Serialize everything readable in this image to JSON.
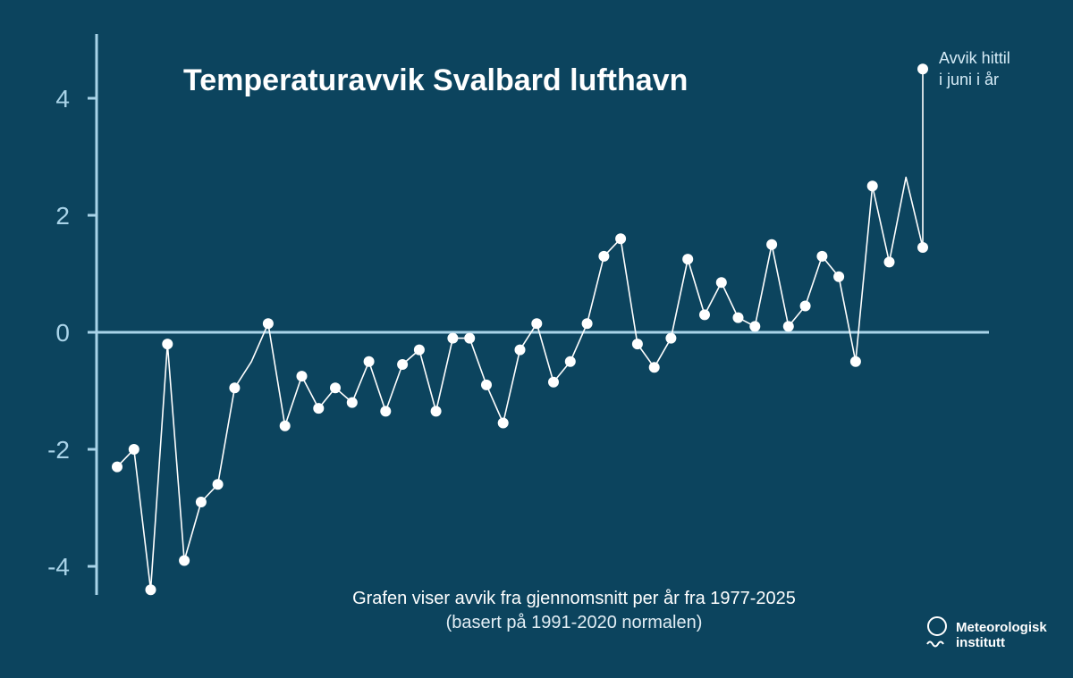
{
  "chart_data": {
    "type": "line",
    "title": "Temperaturavvik Svalbard lufthavn",
    "subtitle": "Grafen viser avvik fra gjennomsnitt per år fra 1977-2025",
    "subtitle_note": "(basert på 1991-2020 normalen)",
    "xlabel": "",
    "ylabel": "",
    "ylim": [
      -4.4,
      5.1
    ],
    "xlim": [
      1977,
      2025
    ],
    "y_ticks": [
      "-4",
      "-2",
      "0",
      "2",
      "4"
    ],
    "y_tick_values": [
      -4,
      -2,
      0,
      2,
      4
    ],
    "grid": false,
    "zero_line": true,
    "x": [
      1977,
      1978,
      1979,
      1980,
      1981,
      1982,
      1983,
      1984,
      1985,
      1986,
      1987,
      1988,
      1989,
      1990,
      1991,
      1992,
      1993,
      1994,
      1995,
      1996,
      1997,
      1998,
      1999,
      2000,
      2001,
      2002,
      2003,
      2004,
      2005,
      2006,
      2007,
      2008,
      2009,
      2010,
      2011,
      2012,
      2013,
      2014,
      2015,
      2016,
      2017,
      2018,
      2019,
      2020,
      2021,
      2022,
      2023,
      2024,
      2025
    ],
    "series": [
      {
        "values": [
          -2.3,
          -2.0,
          -4.4,
          -0.2,
          -3.9,
          -2.9,
          -2.6,
          -0.95,
          -0.5,
          0.15,
          -1.6,
          -0.75,
          -1.3,
          -0.95,
          -1.2,
          -0.5,
          -1.35,
          -0.55,
          -0.3,
          -1.35,
          -0.1,
          -0.1,
          -0.9,
          -1.55,
          -0.3,
          0.15,
          -0.85,
          -0.5,
          0.15,
          1.3,
          1.6,
          -0.2,
          -0.6,
          -0.1,
          1.25,
          0.3,
          0.85,
          0.25,
          0.1,
          1.5,
          0.1,
          0.45,
          1.3,
          0.95,
          -0.5,
          2.5,
          1.2,
          2.65,
          1.45
        ],
        "markers_omitted_years": [
          1985,
          2024
        ]
      }
    ],
    "highlight": {
      "x": 2025,
      "value": 4.5,
      "label_line1": "Avvik hittil",
      "label_line2": "i juni i år"
    }
  },
  "logo": {
    "line1": "Meteorologisk",
    "line2": "institutt"
  },
  "colors": {
    "background": "#0c445e",
    "axis": "#a9d3e8",
    "line": "#ffffff",
    "marker": "#ffffff"
  }
}
